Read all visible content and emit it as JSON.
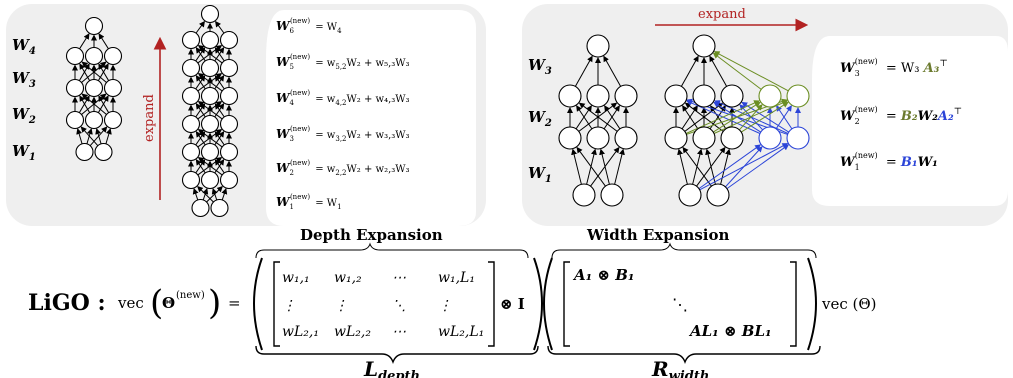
{
  "depth_panel": {
    "layer_labels": [
      "W",
      "W",
      "W",
      "W"
    ],
    "layer_subs": [
      "4",
      "3",
      "2",
      "1"
    ],
    "expand_label": "expand",
    "caption": "Depth Expansion",
    "formulas": [
      {
        "lhs": "W",
        "lhs_sub": "6",
        "sup": "(new)",
        "rhs": "= W",
        "rhs_sub": "4",
        "rest": ""
      },
      {
        "lhs": "W",
        "lhs_sub": "5",
        "sup": "(new)",
        "rhs": "= w",
        "rhs_sub": "5,2",
        "rest": "W₂ + w₅,₃W₃"
      },
      {
        "lhs": "W",
        "lhs_sub": "4",
        "sup": "(new)",
        "rhs": "= w",
        "rhs_sub": "4,2",
        "rest": "W₂ + w₄,₃W₃"
      },
      {
        "lhs": "W",
        "lhs_sub": "3",
        "sup": "(new)",
        "rhs": "= w",
        "rhs_sub": "3,2",
        "rest": "W₂ + w₃,₃W₃"
      },
      {
        "lhs": "W",
        "lhs_sub": "2",
        "sup": "(new)",
        "rhs": "= w",
        "rhs_sub": "2,2",
        "rest": "W₂ + w₂,₃W₃"
      },
      {
        "lhs": "W",
        "lhs_sub": "1",
        "sup": "(new)",
        "rhs": "= W",
        "rhs_sub": "1",
        "rest": ""
      }
    ]
  },
  "width_panel": {
    "layer_labels": [
      "W",
      "W",
      "W"
    ],
    "layer_subs": [
      "3",
      "2",
      "1"
    ],
    "expand_label": "expand",
    "caption": "Width Expansion",
    "formulas": [
      {
        "lhs": "W",
        "sub": "3",
        "sup": "(new)",
        "eq": "= W₃",
        "colored": "A₃",
        "color": "#6b7a2e",
        "tail": "⊤"
      },
      {
        "lhs": "W",
        "sub": "2",
        "sup": "(new)",
        "eq": "=",
        "colored": "B₂",
        "color": "#6b7a2e",
        "mid": "W₂",
        "colored2": "A₂",
        "color2": "#2b44d8",
        "tail": "⊤"
      },
      {
        "lhs": "W",
        "sub": "1",
        "sup": "(new)",
        "eq": "=",
        "colored": "B₁",
        "color": "#2b44d8",
        "mid": "W₁",
        "tail": ""
      }
    ]
  },
  "equation": {
    "ligo": "LiGO :",
    "vec_lhs": "vec",
    "theta_new": "Θ",
    "theta_sup": "(new)",
    "equals": "=",
    "matrix_rows": [
      [
        "w₁,₁",
        "w₁,₂",
        "⋯",
        "w₁,L₁"
      ],
      [
        "⋮",
        "⋮",
        "⋱",
        "⋮"
      ],
      [
        "wL₂,₁",
        "wL₂,₂",
        "⋯",
        "wL₂,L₁"
      ]
    ],
    "otimes_I": "⊗ I",
    "kron_first": "A₁ ⊗ B₁",
    "kron_dots": "⋱",
    "kron_last": "AL₁ ⊗ BL₁",
    "vec_rhs": "vec (Θ)",
    "L_label": "L",
    "L_sub": "depth",
    "R_label": "R",
    "R_sub": "width"
  },
  "colors": {
    "panel_bg": "#efefef",
    "expand_arrow": "#b22222",
    "green": "#6b8e23",
    "blue": "#2b44d8"
  }
}
